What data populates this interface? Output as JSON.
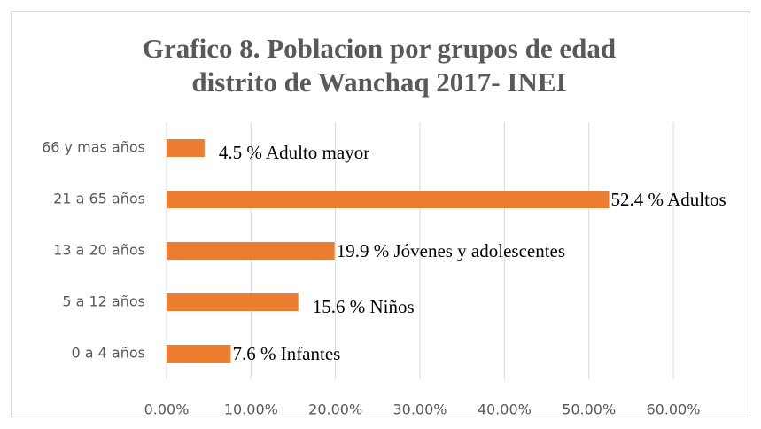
{
  "chart_data": {
    "type": "hbar",
    "title": [
      "Grafico 8. Poblacion por grupos de edad",
      "distrito de Wanchaq 2017- INEI"
    ],
    "categories": [
      "66 y mas años",
      "21 a 65 años",
      "13 a 20 años",
      "5 a 12 años",
      "0 a 4 años"
    ],
    "values": [
      4.5,
      52.4,
      19.9,
      15.6,
      7.6
    ],
    "value_labels": [
      "4.5 % Adulto mayor",
      "52.4 % Adultos",
      "19.9 % Jóvenes y adolescentes",
      "15.6 % Niños",
      "7.6 % Infantes"
    ],
    "color": "#ED7D31",
    "xlim": [
      0,
      60
    ],
    "xticks": [
      {
        "value": 0,
        "label": "0.00%"
      },
      {
        "value": 10,
        "label": "10.00%"
      },
      {
        "value": 20,
        "label": "20.00%"
      },
      {
        "value": 30,
        "label": "30.00%"
      },
      {
        "value": 40,
        "label": "40.00%"
      },
      {
        "value": 50,
        "label": "50.00%"
      },
      {
        "value": 60,
        "label": "60.00%"
      }
    ],
    "grid": true
  }
}
